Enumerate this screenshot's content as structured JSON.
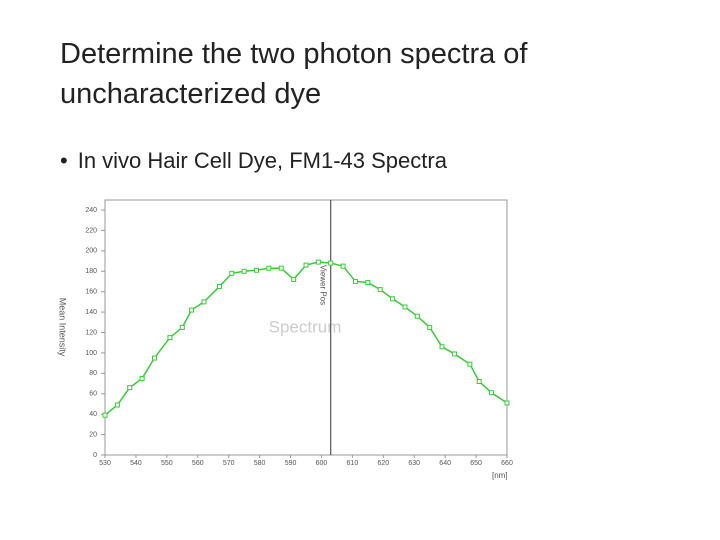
{
  "header": {
    "title": "Determine the two photon spectra of uncharacterized dye",
    "bullet": "In vivo Hair Cell Dye, FM1-43 Spectra"
  },
  "chart_data": {
    "type": "line",
    "x": [
      530,
      534,
      538,
      542,
      546,
      551,
      555,
      558,
      562,
      567,
      571,
      575,
      579,
      583,
      587,
      591,
      595,
      599,
      603,
      607,
      611,
      615,
      619,
      623,
      627,
      631,
      635,
      639,
      643,
      648,
      651,
      655,
      660
    ],
    "series": [
      {
        "color": "#3cc83c",
        "values": [
          39,
          49,
          66,
          75,
          95,
          115,
          125,
          142,
          150,
          165,
          178,
          180,
          181,
          183,
          183,
          172,
          186,
          189,
          188,
          185,
          170,
          169,
          162,
          153,
          145,
          136,
          125,
          106,
          99,
          89,
          72,
          61,
          51
        ]
      }
    ],
    "xlim": [
      530,
      660
    ],
    "ylim": [
      0,
      240
    ],
    "xticks": [
      530,
      540,
      550,
      560,
      570,
      580,
      590,
      600,
      610,
      620,
      630,
      640,
      650,
      660
    ],
    "yticks": [
      0,
      20,
      40,
      60,
      80,
      100,
      120,
      140,
      160,
      180,
      200,
      220,
      240
    ],
    "xlabel": "[nm]",
    "ylabel": "Mean Intensity",
    "annotations": [
      {
        "text": "Viewer Pos",
        "x": 603
      }
    ],
    "watermark": "Spectrum",
    "grid": false
  }
}
